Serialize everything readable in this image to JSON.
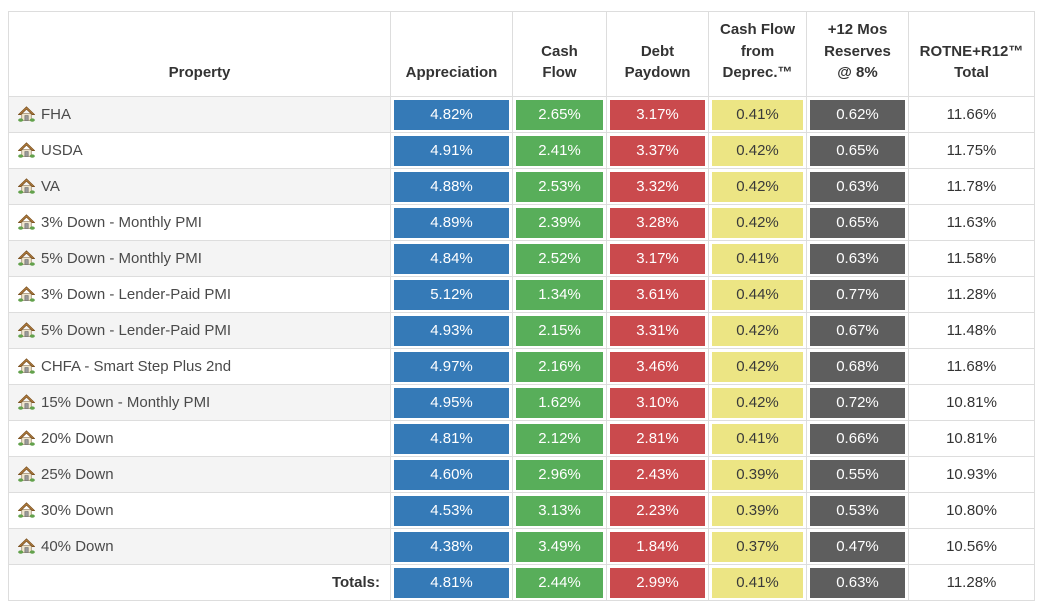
{
  "table": {
    "columns": [
      {
        "key": "property",
        "label": "Property"
      },
      {
        "key": "appreciation",
        "label": "Appreciation",
        "color": "#357ab7",
        "text_color": "#ffffff"
      },
      {
        "key": "cash_flow",
        "label": "Cash\nFlow",
        "color": "#58ae5a",
        "text_color": "#ffffff"
      },
      {
        "key": "debt_paydown",
        "label": "Debt\nPaydown",
        "color": "#ca4a4d",
        "text_color": "#ffffff"
      },
      {
        "key": "deprec",
        "label": "Cash Flow\nfrom\nDeprec.™",
        "color": "#ece584",
        "text_color": "#3a3a3a"
      },
      {
        "key": "reserves",
        "label": "+12 Mos\nReserves\n@ 8%",
        "color": "#5e5e5e",
        "text_color": "#ffffff"
      },
      {
        "key": "total",
        "label": "ROTNE+R12™\nTotal",
        "color": "#ffffff",
        "text_color": "#333333"
      }
    ],
    "rows": [
      {
        "property": "FHA",
        "values": [
          "4.82%",
          "2.65%",
          "3.17%",
          "0.41%",
          "0.62%",
          "11.66%"
        ]
      },
      {
        "property": "USDA",
        "values": [
          "4.91%",
          "2.41%",
          "3.37%",
          "0.42%",
          "0.65%",
          "11.75%"
        ]
      },
      {
        "property": "VA",
        "values": [
          "4.88%",
          "2.53%",
          "3.32%",
          "0.42%",
          "0.63%",
          "11.78%"
        ]
      },
      {
        "property": "3% Down - Monthly PMI",
        "values": [
          "4.89%",
          "2.39%",
          "3.28%",
          "0.42%",
          "0.65%",
          "11.63%"
        ]
      },
      {
        "property": "5% Down - Monthly PMI",
        "values": [
          "4.84%",
          "2.52%",
          "3.17%",
          "0.41%",
          "0.63%",
          "11.58%"
        ]
      },
      {
        "property": "3% Down - Lender-Paid PMI",
        "values": [
          "5.12%",
          "1.34%",
          "3.61%",
          "0.44%",
          "0.77%",
          "11.28%"
        ]
      },
      {
        "property": "5% Down - Lender-Paid PMI",
        "values": [
          "4.93%",
          "2.15%",
          "3.31%",
          "0.42%",
          "0.67%",
          "11.48%"
        ]
      },
      {
        "property": "CHFA - Smart Step Plus 2nd",
        "values": [
          "4.97%",
          "2.16%",
          "3.46%",
          "0.42%",
          "0.68%",
          "11.68%"
        ]
      },
      {
        "property": "15% Down - Monthly PMI",
        "values": [
          "4.95%",
          "1.62%",
          "3.10%",
          "0.42%",
          "0.72%",
          "10.81%"
        ]
      },
      {
        "property": "20% Down",
        "values": [
          "4.81%",
          "2.12%",
          "2.81%",
          "0.41%",
          "0.66%",
          "10.81%"
        ]
      },
      {
        "property": "25% Down",
        "values": [
          "4.60%",
          "2.96%",
          "2.43%",
          "0.39%",
          "0.55%",
          "10.93%"
        ]
      },
      {
        "property": "30% Down",
        "values": [
          "4.53%",
          "3.13%",
          "2.23%",
          "0.39%",
          "0.53%",
          "10.80%"
        ]
      },
      {
        "property": "40% Down",
        "values": [
          "4.38%",
          "3.49%",
          "1.84%",
          "0.37%",
          "0.47%",
          "10.56%"
        ]
      }
    ],
    "totals": {
      "label": "Totals:",
      "values": [
        "4.81%",
        "2.44%",
        "2.99%",
        "0.41%",
        "0.63%",
        "11.28%"
      ]
    }
  },
  "icons": {
    "row_icon": "house-icon"
  },
  "colors": {
    "row_stripe": "#f4f4f4",
    "border": "#dddddd",
    "header_text": "#333333",
    "property_text": "#4a4a4a",
    "appreciation_blue": "#357ab7",
    "cash_flow_green": "#58ae5a",
    "debt_paydown_red": "#ca4a4d",
    "deprec_yellow": "#ece584",
    "reserves_gray": "#5e5e5e"
  }
}
